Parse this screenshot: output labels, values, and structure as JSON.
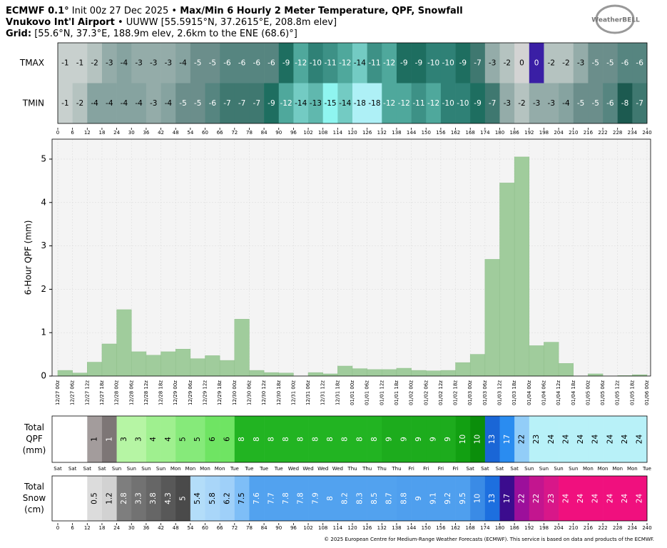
{
  "header": {
    "model": "ECMWF 0.1°",
    "init": "Init 00z 27 Dec 2025 •",
    "product": "Max/Min 6 Hourly 2 Meter Temperature, QPF, Snowfall",
    "station": "Vnukovo Int'l Airport",
    "station_info": "• UUWW [55.5915°N, 37.2615°E, 208.8m elev]",
    "grid_label": "Grid:",
    "grid_info": "[55.6°N, 37.3°E, 188.9m elev, 2.6km to the ENE (68.6)°]",
    "logo": "WeatherBELL"
  },
  "chart_data": [
    {
      "type": "heatmap",
      "xlim": [
        0,
        240
      ],
      "xticks": [
        0,
        6,
        12,
        18,
        24,
        30,
        36,
        42,
        48,
        54,
        60,
        66,
        72,
        78,
        84,
        90,
        96,
        102,
        108,
        114,
        120,
        126,
        132,
        138,
        144,
        150,
        156,
        162,
        168,
        174,
        180,
        186,
        192,
        198,
        204,
        210,
        216,
        222,
        228,
        234,
        240
      ],
      "rows": [
        {
          "name": "TMAX",
          "values": [
            -1,
            -1,
            -2,
            -3,
            -4,
            -3,
            -3,
            -3,
            -4,
            -5,
            -5,
            -6,
            -6,
            -6,
            -6,
            -9,
            -12,
            -10,
            -11,
            -12,
            -14,
            -11,
            -12,
            -9,
            -9,
            -10,
            -10,
            -9,
            -7,
            -3,
            -2,
            0,
            0,
            -2,
            -2,
            -3,
            -5,
            -5,
            -6,
            -6
          ],
          "colors": [
            "#c8d0ce",
            "#c8d0ce",
            "#b5c3c0",
            "#94aca9",
            "#86a3a0",
            "#94aca9",
            "#94aca9",
            "#94aca9",
            "#86a3a0",
            "#6b8e8b",
            "#6b8e8b",
            "#568580",
            "#568580",
            "#568580",
            "#568580",
            "#1e6e60",
            "#4fa89c",
            "#2f8176",
            "#3d9186",
            "#4fa89c",
            "#73cbc3",
            "#3d9186",
            "#4fa89c",
            "#1e6e60",
            "#1e6e60",
            "#2f8176",
            "#2f8176",
            "#1e6e60",
            "#3f7870",
            "#94aca9",
            "#b5c3c0",
            "#d3d3d3",
            "#3a1fa5",
            "#b5c3c0",
            "#b5c3c0",
            "#94aca9",
            "#6b8e8b",
            "#6b8e8b",
            "#568580",
            "#568580"
          ]
        },
        {
          "name": "TMIN",
          "values": [
            -1,
            -2,
            -4,
            -4,
            -4,
            -4,
            -3,
            -4,
            -5,
            -5,
            -6,
            -7,
            -7,
            -7,
            -9,
            -12,
            -14,
            -13,
            -15,
            -14,
            -18,
            -18,
            -12,
            -12,
            -11,
            -12,
            -10,
            -10,
            -9,
            -7,
            -3,
            -2,
            -3,
            -3,
            -4,
            -5,
            -5,
            -6,
            -8,
            -7
          ],
          "colors": [
            "#c8d0ce",
            "#b5c3c0",
            "#86a3a0",
            "#86a3a0",
            "#86a3a0",
            "#86a3a0",
            "#94aca9",
            "#86a3a0",
            "#6b8e8b",
            "#6b8e8b",
            "#568580",
            "#3f7870",
            "#3f7870",
            "#3f7870",
            "#1e6e60",
            "#4fa89c",
            "#73cbc3",
            "#60b8ae",
            "#8ff5f0",
            "#73cbc3",
            "#aef0f6",
            "#aef0f6",
            "#4fa89c",
            "#4fa89c",
            "#3d9186",
            "#4fa89c",
            "#2f8176",
            "#2f8176",
            "#1e6e60",
            "#3f7870",
            "#94aca9",
            "#b5c3c0",
            "#94aca9",
            "#94aca9",
            "#86a3a0",
            "#6b8e8b",
            "#6b8e8b",
            "#568580",
            "#1c5a50",
            "#3f7870"
          ]
        }
      ]
    },
    {
      "type": "bar",
      "ylabel": "6-Hour QPF (mm)",
      "color": "#a0cc9c",
      "grid": true,
      "ylim": [
        0,
        5.46
      ],
      "yticks": [
        0,
        1,
        2,
        3,
        4,
        5
      ],
      "x_labels": [
        "12/27 00z",
        "12/27 06z",
        "12/27 12z",
        "12/27 18z",
        "12/28 00z",
        "12/28 06z",
        "12/28 12z",
        "12/28 18z",
        "12/29 00z",
        "12/29 06z",
        "12/29 12z",
        "12/29 18z",
        "12/30 00z",
        "12/30 06z",
        "12/30 12z",
        "12/30 18z",
        "12/31 00z",
        "12/31 06z",
        "12/31 12z",
        "12/31 18z",
        "01/01 00z",
        "01/01 06z",
        "01/01 12z",
        "01/01 18z",
        "01/02 00z",
        "01/02 06z",
        "01/02 12z",
        "01/02 18z",
        "01/03 00z",
        "01/03 06z",
        "01/03 12z",
        "01/03 18z",
        "01/04 00z",
        "01/04 06z",
        "01/04 12z",
        "01/04 18z",
        "01/05 00z",
        "01/05 06z",
        "01/05 12z",
        "01/05 18z",
        "01/06 00z"
      ],
      "values": [
        0.13,
        0.07,
        0.32,
        0.74,
        1.53,
        0.56,
        0.48,
        0.56,
        0.62,
        0.4,
        0.47,
        0.36,
        1.31,
        0.13,
        0.08,
        0.07,
        0,
        0.08,
        0.05,
        0.23,
        0.17,
        0.15,
        0.15,
        0.18,
        0.13,
        0.12,
        0.13,
        0.31,
        0.5,
        2.69,
        4.45,
        5.05,
        0.7,
        0.78,
        0.29,
        0,
        0.05,
        0,
        0.01,
        0.03
      ]
    },
    {
      "type": "strip",
      "label_lines": [
        "Total",
        "QPF",
        "(mm)"
      ],
      "x_labels": [
        "Sat",
        "Sat",
        "Sat",
        "Sat",
        "Sun",
        "Sun",
        "Sun",
        "Sun",
        "Mon",
        "Mon",
        "Mon",
        "Mon",
        "Tue",
        "Tue",
        "Tue",
        "Tue",
        "Wed",
        "Wed",
        "Wed",
        "Wed",
        "Thu",
        "Thu",
        "Thu",
        "Thu",
        "Fri",
        "Fri",
        "Fri",
        "Fri",
        "Sat",
        "Sat",
        "Sat",
        "Sat",
        "Sun",
        "Sun",
        "Sun",
        "Sun",
        "Mon",
        "Mon",
        "Mon",
        "Mon",
        "Tue"
      ],
      "values": [
        null,
        null,
        1,
        1,
        3,
        3,
        4,
        4,
        5,
        5,
        6,
        6,
        8,
        8,
        8,
        8,
        8,
        8,
        8,
        8,
        8,
        8,
        9,
        9,
        9,
        9,
        9,
        10,
        10,
        13,
        17,
        22,
        23,
        24,
        24,
        24,
        24,
        24,
        24,
        24
      ],
      "colors": [
        "#ffffff",
        "#ffffff",
        "#a39c9c",
        "#7d7676",
        "#b6f5a4",
        "#b6f5a4",
        "#9ff08f",
        "#9ff08f",
        "#86ea7a",
        "#86ea7a",
        "#6fe463",
        "#6fe463",
        "#22b422",
        "#22b422",
        "#22b422",
        "#22b422",
        "#22b422",
        "#22b422",
        "#22b422",
        "#22b422",
        "#22b422",
        "#22b422",
        "#1dac1d",
        "#1dac1d",
        "#1dac1d",
        "#1dac1d",
        "#1dac1d",
        "#12a012",
        "#0b8e0b",
        "#1a66d6",
        "#2a8cf0",
        "#92cdf8",
        "#b8f1f8",
        "#b8f1f8",
        "#b8f1f8",
        "#b8f1f8",
        "#b8f1f8",
        "#b8f1f8",
        "#b8f1f8",
        "#b8f1f8"
      ]
    },
    {
      "type": "strip",
      "label_lines": [
        "Total",
        "Snow",
        "(cm)"
      ],
      "xlim": [
        0,
        240
      ],
      "xticks": [
        0,
        6,
        12,
        18,
        24,
        30,
        36,
        42,
        48,
        54,
        60,
        66,
        72,
        78,
        84,
        90,
        96,
        102,
        108,
        114,
        120,
        126,
        132,
        138,
        144,
        150,
        156,
        162,
        168,
        174,
        180,
        186,
        192,
        198,
        204,
        210,
        216,
        222,
        228,
        234,
        240
      ],
      "values": [
        null,
        null,
        0.5,
        1.2,
        2.8,
        3.3,
        3.8,
        4.3,
        5,
        5.4,
        5.8,
        6.2,
        7.5,
        7.6,
        7.7,
        7.8,
        7.8,
        7.9,
        8,
        8.2,
        8.3,
        8.5,
        8.7,
        8.8,
        9,
        9.1,
        9.2,
        9.5,
        10,
        13,
        17,
        22,
        22,
        23,
        24,
        24,
        24,
        24,
        24,
        24
      ],
      "colors": [
        "#ffffff",
        "#ffffff",
        "#dcdcdc",
        "#d2d2d2",
        "#7e7e7e",
        "#727272",
        "#666666",
        "#585858",
        "#4a4a4a",
        "#b3ddf9",
        "#a9d6f9",
        "#9fd0f9",
        "#7ebef7",
        "#52a2ef",
        "#52a2ef",
        "#52a2ef",
        "#52a2ef",
        "#52a2ef",
        "#52a2ef",
        "#52a2ef",
        "#52a2ef",
        "#52a2ef",
        "#52a2ef",
        "#4f9fee",
        "#4f9fee",
        "#4f9fee",
        "#4f9fee",
        "#4f9fee",
        "#3a8be6",
        "#1d6fdf",
        "#3b0c8e",
        "#9c0f9b",
        "#c3158f",
        "#d81789",
        "#f0107e",
        "#f0107e",
        "#f0107e",
        "#f0107e",
        "#f0107e",
        "#f0107e"
      ]
    }
  ],
  "footer": "© 2025 European Centre for Medium-Range Weather Forecasts (ECMWF). This service is based on data and products of the ECMWF."
}
